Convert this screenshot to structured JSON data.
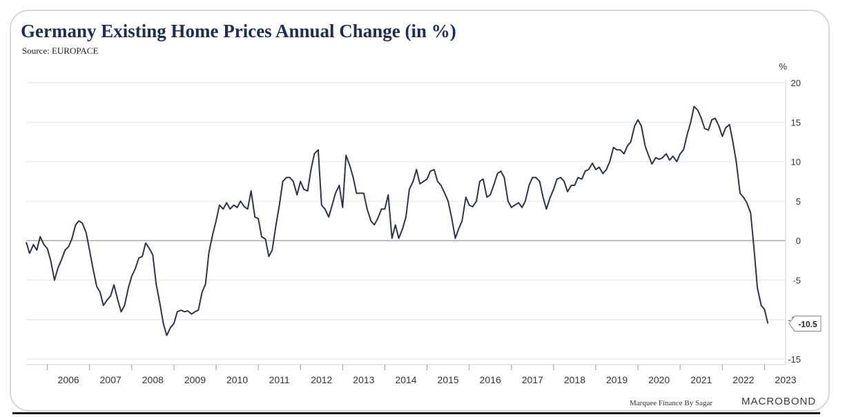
{
  "header": {
    "title": "Germany Existing Home Prices Annual Change (in %)",
    "source": "Source: EUROPACE"
  },
  "footer": {
    "credit": "Marquee Finance By Sagar",
    "brand": "MACROBOND"
  },
  "colors": {
    "line": "#2b3546",
    "grid": "#e2e2e2",
    "zero": "#9a9a9a",
    "title": "#1f2d4e"
  },
  "chart_data": {
    "type": "line",
    "title": "Germany Existing Home Prices Annual Change (in %)",
    "subtitle": "Source: EUROPACE",
    "ylabel": "%",
    "xlabel": "",
    "ylim": [
      -15,
      20
    ],
    "xlim": [
      2005.5,
      2023.5
    ],
    "yticks": [
      20,
      15,
      10,
      5,
      0,
      -5,
      -10,
      -15
    ],
    "xticks": [
      "2006",
      "2007",
      "2008",
      "2009",
      "2010",
      "2011",
      "2012",
      "2013",
      "2014",
      "2015",
      "2016",
      "2017",
      "2018",
      "2019",
      "2020",
      "2021",
      "2022",
      "2023"
    ],
    "grid": true,
    "last_value_label": "-10.5",
    "series": [
      {
        "points": [
          [
            2005.5,
            -0.2
          ],
          [
            2005.58,
            -1.6
          ],
          [
            2005.67,
            -0.5
          ],
          [
            2005.75,
            -1.2
          ],
          [
            2005.83,
            0.5
          ],
          [
            2005.92,
            -0.5
          ],
          [
            2006.0,
            -1.0
          ],
          [
            2006.08,
            -2.5
          ],
          [
            2006.17,
            -5.0
          ],
          [
            2006.25,
            -3.5
          ],
          [
            2006.33,
            -2.5
          ],
          [
            2006.42,
            -1.2
          ],
          [
            2006.5,
            -0.8
          ],
          [
            2006.58,
            0.2
          ],
          [
            2006.67,
            2.0
          ],
          [
            2006.75,
            2.5
          ],
          [
            2006.83,
            2.2
          ],
          [
            2006.92,
            1.0
          ],
          [
            2007.0,
            -1.2
          ],
          [
            2007.08,
            -3.5
          ],
          [
            2007.17,
            -5.8
          ],
          [
            2007.25,
            -6.5
          ],
          [
            2007.33,
            -8.2
          ],
          [
            2007.42,
            -7.5
          ],
          [
            2007.5,
            -7.0
          ],
          [
            2007.58,
            -5.6
          ],
          [
            2007.67,
            -7.5
          ],
          [
            2007.75,
            -9.0
          ],
          [
            2007.83,
            -8.2
          ],
          [
            2007.92,
            -6.0
          ],
          [
            2008.0,
            -4.5
          ],
          [
            2008.08,
            -3.6
          ],
          [
            2008.17,
            -2.2
          ],
          [
            2008.25,
            -2.0
          ],
          [
            2008.33,
            -0.3
          ],
          [
            2008.42,
            -1.0
          ],
          [
            2008.5,
            -1.8
          ],
          [
            2008.58,
            -5.5
          ],
          [
            2008.67,
            -8.0
          ],
          [
            2008.75,
            -10.5
          ],
          [
            2008.83,
            -12.0
          ],
          [
            2008.92,
            -11.0
          ],
          [
            2009.0,
            -10.5
          ],
          [
            2009.08,
            -9.0
          ],
          [
            2009.17,
            -8.8
          ],
          [
            2009.25,
            -9.0
          ],
          [
            2009.33,
            -8.9
          ],
          [
            2009.42,
            -9.3
          ],
          [
            2009.5,
            -9.0
          ],
          [
            2009.58,
            -8.8
          ],
          [
            2009.67,
            -6.5
          ],
          [
            2009.75,
            -5.5
          ],
          [
            2009.83,
            -1.5
          ],
          [
            2009.92,
            0.8
          ],
          [
            2010.0,
            2.5
          ],
          [
            2010.08,
            4.5
          ],
          [
            2010.17,
            4.0
          ],
          [
            2010.25,
            4.8
          ],
          [
            2010.33,
            4.0
          ],
          [
            2010.42,
            4.5
          ],
          [
            2010.5,
            4.2
          ],
          [
            2010.58,
            5.0
          ],
          [
            2010.67,
            4.3
          ],
          [
            2010.75,
            4.0
          ],
          [
            2010.83,
            6.3
          ],
          [
            2010.92,
            3.0
          ],
          [
            2011.0,
            2.8
          ],
          [
            2011.08,
            0.5
          ],
          [
            2011.17,
            0.2
          ],
          [
            2011.25,
            -2.0
          ],
          [
            2011.33,
            -1.2
          ],
          [
            2011.42,
            2.0
          ],
          [
            2011.5,
            4.5
          ],
          [
            2011.58,
            7.5
          ],
          [
            2011.67,
            8.0
          ],
          [
            2011.75,
            8.0
          ],
          [
            2011.83,
            7.5
          ],
          [
            2011.92,
            5.8
          ],
          [
            2012.0,
            7.5
          ],
          [
            2012.08,
            6.5
          ],
          [
            2012.17,
            6.3
          ],
          [
            2012.25,
            9.0
          ],
          [
            2012.33,
            11.0
          ],
          [
            2012.42,
            11.5
          ],
          [
            2012.5,
            4.5
          ],
          [
            2012.58,
            4.0
          ],
          [
            2012.67,
            3.0
          ],
          [
            2012.75,
            4.5
          ],
          [
            2012.83,
            6.0
          ],
          [
            2012.92,
            7.0
          ],
          [
            2013.0,
            4.2
          ],
          [
            2013.08,
            10.8
          ],
          [
            2013.17,
            9.5
          ],
          [
            2013.25,
            8.0
          ],
          [
            2013.33,
            6.0
          ],
          [
            2013.42,
            6.0
          ],
          [
            2013.5,
            6.0
          ],
          [
            2013.58,
            4.0
          ],
          [
            2013.67,
            2.5
          ],
          [
            2013.75,
            2.0
          ],
          [
            2013.83,
            2.8
          ],
          [
            2013.92,
            4.0
          ],
          [
            2014.0,
            4.0
          ],
          [
            2014.08,
            5.8
          ],
          [
            2014.17,
            0.3
          ],
          [
            2014.25,
            2.0
          ],
          [
            2014.33,
            0.3
          ],
          [
            2014.42,
            1.5
          ],
          [
            2014.5,
            3.0
          ],
          [
            2014.58,
            6.5
          ],
          [
            2014.67,
            7.5
          ],
          [
            2014.75,
            9.0
          ],
          [
            2014.83,
            7.2
          ],
          [
            2014.92,
            7.5
          ],
          [
            2015.0,
            7.8
          ],
          [
            2015.08,
            8.8
          ],
          [
            2015.17,
            9.0
          ],
          [
            2015.25,
            7.5
          ],
          [
            2015.33,
            7.0
          ],
          [
            2015.42,
            6.0
          ],
          [
            2015.5,
            5.0
          ],
          [
            2015.58,
            3.0
          ],
          [
            2015.67,
            0.3
          ],
          [
            2015.75,
            1.5
          ],
          [
            2015.83,
            2.5
          ],
          [
            2015.92,
            5.5
          ],
          [
            2016.0,
            4.5
          ],
          [
            2016.08,
            4.3
          ],
          [
            2016.17,
            5.0
          ],
          [
            2016.25,
            7.5
          ],
          [
            2016.33,
            7.8
          ],
          [
            2016.42,
            5.5
          ],
          [
            2016.5,
            5.8
          ],
          [
            2016.58,
            7.0
          ],
          [
            2016.67,
            8.5
          ],
          [
            2016.75,
            8.8
          ],
          [
            2016.83,
            8.0
          ],
          [
            2016.92,
            5.0
          ],
          [
            2017.0,
            4.2
          ],
          [
            2017.08,
            4.5
          ],
          [
            2017.17,
            4.8
          ],
          [
            2017.25,
            4.2
          ],
          [
            2017.33,
            5.0
          ],
          [
            2017.42,
            7.0
          ],
          [
            2017.5,
            8.0
          ],
          [
            2017.58,
            8.0
          ],
          [
            2017.67,
            7.5
          ],
          [
            2017.75,
            5.5
          ],
          [
            2017.83,
            4.0
          ],
          [
            2017.92,
            5.5
          ],
          [
            2018.0,
            6.5
          ],
          [
            2018.08,
            7.8
          ],
          [
            2018.17,
            8.0
          ],
          [
            2018.25,
            7.5
          ],
          [
            2018.33,
            6.2
          ],
          [
            2018.42,
            7.0
          ],
          [
            2018.5,
            7.0
          ],
          [
            2018.58,
            8.0
          ],
          [
            2018.67,
            7.8
          ],
          [
            2018.75,
            8.8
          ],
          [
            2018.83,
            9.0
          ],
          [
            2018.92,
            9.8
          ],
          [
            2019.0,
            9.0
          ],
          [
            2019.08,
            9.3
          ],
          [
            2019.17,
            8.5
          ],
          [
            2019.25,
            9.0
          ],
          [
            2019.33,
            10.0
          ],
          [
            2019.42,
            11.8
          ],
          [
            2019.5,
            11.5
          ],
          [
            2019.58,
            11.5
          ],
          [
            2019.67,
            11.0
          ],
          [
            2019.75,
            12.0
          ],
          [
            2019.83,
            12.5
          ],
          [
            2019.92,
            14.5
          ],
          [
            2020.0,
            15.3
          ],
          [
            2020.08,
            14.5
          ],
          [
            2020.17,
            12.0
          ],
          [
            2020.25,
            10.8
          ],
          [
            2020.33,
            9.7
          ],
          [
            2020.42,
            10.5
          ],
          [
            2020.5,
            10.3
          ],
          [
            2020.58,
            10.5
          ],
          [
            2020.67,
            11.0
          ],
          [
            2020.75,
            10.2
          ],
          [
            2020.83,
            10.7
          ],
          [
            2020.92,
            10.0
          ],
          [
            2021.0,
            11.0
          ],
          [
            2021.08,
            11.5
          ],
          [
            2021.17,
            13.5
          ],
          [
            2021.25,
            15.0
          ],
          [
            2021.33,
            17.0
          ],
          [
            2021.42,
            16.5
          ],
          [
            2021.5,
            15.5
          ],
          [
            2021.58,
            14.2
          ],
          [
            2021.67,
            14.0
          ],
          [
            2021.75,
            15.3
          ],
          [
            2021.83,
            15.5
          ],
          [
            2021.92,
            14.5
          ],
          [
            2022.0,
            13.2
          ],
          [
            2022.08,
            14.3
          ],
          [
            2022.17,
            14.7
          ],
          [
            2022.25,
            12.5
          ],
          [
            2022.33,
            10.0
          ],
          [
            2022.42,
            6.0
          ],
          [
            2022.5,
            5.5
          ],
          [
            2022.58,
            4.8
          ],
          [
            2022.67,
            3.5
          ],
          [
            2022.75,
            -1.0
          ],
          [
            2022.83,
            -6.0
          ],
          [
            2022.92,
            -8.2
          ],
          [
            2023.0,
            -8.7
          ],
          [
            2023.08,
            -10.5
          ]
        ]
      }
    ]
  }
}
